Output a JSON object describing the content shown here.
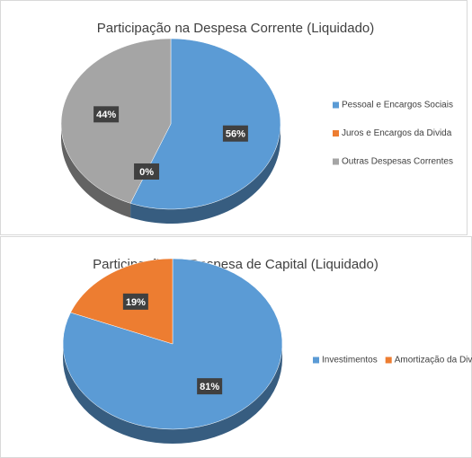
{
  "chart_data": [
    {
      "type": "pie",
      "title": "Participação na Despesa Corrente (Liquidado)",
      "categories": [
        "Pessoal e Encargos Sociais",
        "Juros e Encargos da Divida",
        "Outras Despesas Correntes"
      ],
      "values": [
        56,
        0,
        44
      ],
      "value_labels": [
        "56%",
        "0%",
        "44%"
      ],
      "colors": [
        "#5b9bd5",
        "#ed7d31",
        "#a5a5a5"
      ],
      "legend": "right"
    },
    {
      "type": "pie",
      "title": "Participação na Despesa de Capital (Liquidado)",
      "categories": [
        "Investimentos",
        "Amortização da Divida"
      ],
      "values": [
        81,
        19
      ],
      "value_labels": [
        "81%",
        "19%"
      ],
      "colors": [
        "#5b9bd5",
        "#ed7d31"
      ],
      "legend": "right"
    }
  ]
}
